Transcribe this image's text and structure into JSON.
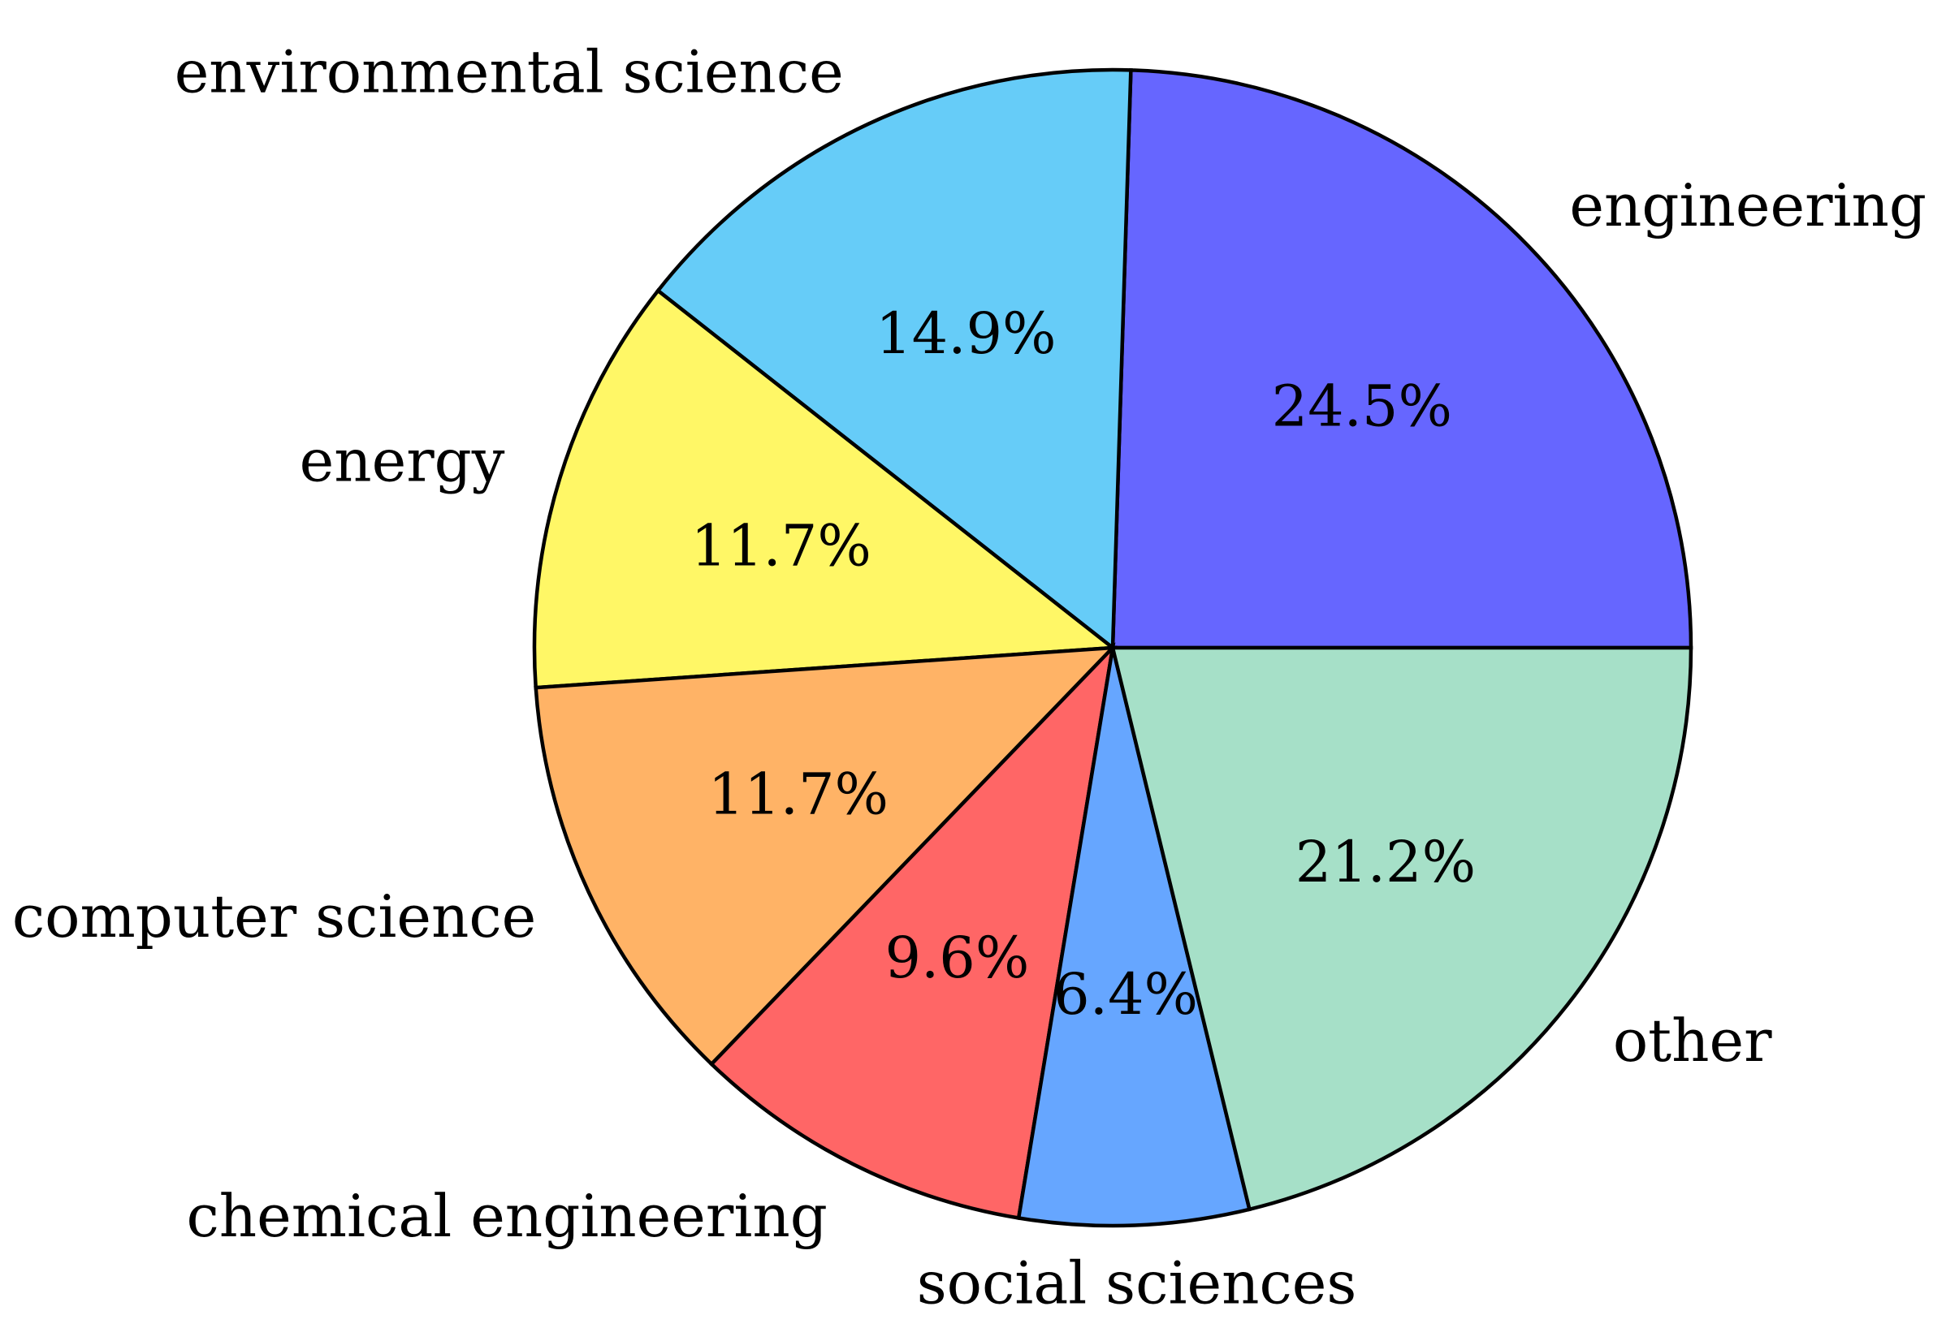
{
  "chart_data": {
    "type": "pie",
    "start_angle_deg": 0,
    "direction": "counterclockwise",
    "slices": [
      {
        "label": "engineering",
        "value": 24.5,
        "pct_text": "24.5%",
        "color": "#6666ff"
      },
      {
        "label": "environmental science",
        "value": 14.9,
        "pct_text": "14.9%",
        "color": "#66ccf8"
      },
      {
        "label": "energy",
        "value": 11.7,
        "pct_text": "11.7%",
        "color": "#fff766"
      },
      {
        "label": "computer science",
        "value": 11.7,
        "pct_text": "11.7%",
        "color": "#ffb366"
      },
      {
        "label": "chemical engineering",
        "value": 9.6,
        "pct_text": "9.6%",
        "color": "#ff6666"
      },
      {
        "label": "social sciences",
        "value": 6.4,
        "pct_text": "6.4%",
        "color": "#66a6ff"
      },
      {
        "label": "other",
        "value": 21.2,
        "pct_text": "21.2%",
        "color": "#a6e0c8"
      }
    ],
    "edge_color": "#000000"
  }
}
